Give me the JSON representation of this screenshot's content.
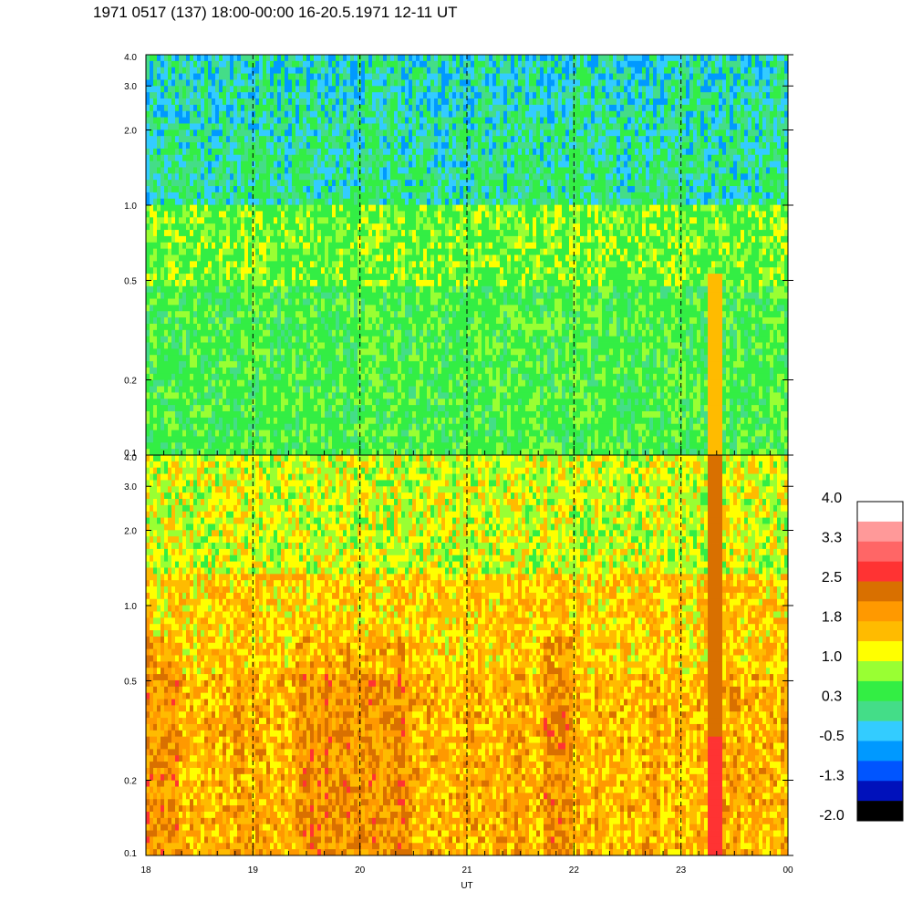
{
  "title": "1971 0517 (137) 18:00-00:00 16-20.5.1971 12-11 UT",
  "chart_data": {
    "type": "heatmap",
    "xlabel": "UT",
    "x_ticks": [
      "18",
      "19",
      "20",
      "21",
      "22",
      "23",
      "00"
    ],
    "x_tick_values": [
      18,
      19,
      20,
      21,
      22,
      23,
      24
    ],
    "xlim": [
      18,
      24
    ],
    "y_scale": "log",
    "ylim": [
      0.1,
      4.0
    ],
    "y_ticks": [
      "4.0",
      "3.0",
      "2.0",
      "1.0",
      "0.5",
      "0.2",
      "0.1"
    ],
    "y_tick_values": [
      4.0,
      3.0,
      2.0,
      1.0,
      0.5,
      0.2,
      0.1
    ],
    "dashed_vertical_lines_at": [
      19,
      20,
      21,
      22,
      23
    ],
    "panels": [
      {
        "name": "",
        "dominant_level": "green to cyan",
        "highlight": "orange column near 23.3"
      },
      {
        "name": "",
        "dominant_level": "yellow to orange",
        "highlight": "red column near 23.3"
      }
    ],
    "colorbar": {
      "labels": [
        "4.0",
        "3.3",
        "2.5",
        "1.8",
        "1.0",
        "0.3",
        "-0.5",
        "-1.3",
        "-2.0"
      ],
      "colors": [
        "#ffffff",
        "#ff9999",
        "#ff6666",
        "#ff3333",
        "#d97000",
        "#ff9900",
        "#ffbb00",
        "#ffff00",
        "#99ff33",
        "#33ee44",
        "#44dd88",
        "#33ccff",
        "#0099ff",
        "#0055ff",
        "#0011bb",
        "#000000"
      ]
    }
  }
}
